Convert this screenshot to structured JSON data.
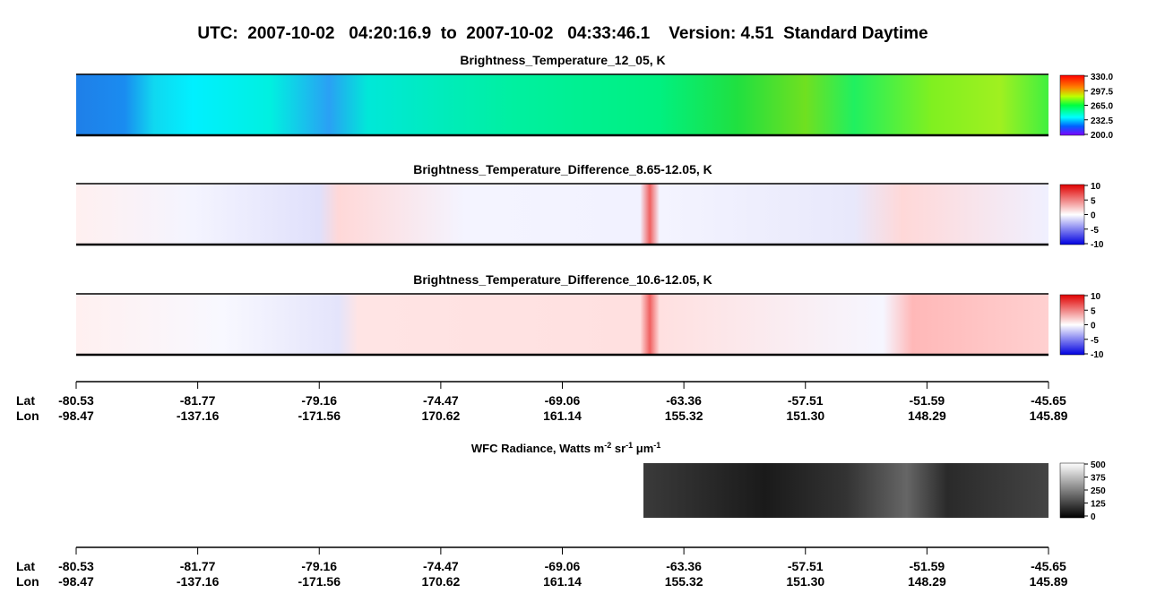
{
  "title": "UTC:  2007-10-02   04:20:16.9  to  2007-10-02   04:33:46.1    Version: 4.51  Standard Daytime",
  "panels": [
    {
      "title": "Brightness_Temperature_12_05, K",
      "colorbar": [
        "330.0",
        "297.5",
        "265.0",
        "232.5",
        "200.0"
      ]
    },
    {
      "title": "Brightness_Temperature_Difference_8.65-12.05, K",
      "colorbar": [
        "10",
        "5",
        "0",
        "-5",
        "-10"
      ]
    },
    {
      "title": "Brightness_Temperature_Difference_10.6-12.05, K",
      "colorbar": [
        "10",
        "5",
        "0",
        "-5",
        "-10"
      ]
    }
  ],
  "wfc": {
    "title": [
      "WFC Radiance, Watts m",
      "-2",
      " sr",
      "-1",
      " μm",
      "-1"
    ],
    "colorbar": [
      "500",
      "375",
      "250",
      "125",
      "0"
    ]
  },
  "axes": [
    {
      "lat_label": "Lat",
      "lon_label": "Lon",
      "lat": [
        "-80.53",
        "-81.77",
        "-79.16",
        "-74.47",
        "-69.06",
        "-63.36",
        "-57.51",
        "-51.59",
        "-45.65"
      ],
      "lon": [
        "-98.47",
        "-137.16",
        "-171.56",
        "170.62",
        "161.14",
        "155.32",
        "151.30",
        "148.29",
        "145.89"
      ]
    },
    {
      "lat_label": "Lat",
      "lon_label": "Lon",
      "lat": [
        "-80.53",
        "-81.77",
        "-79.16",
        "-74.47",
        "-69.06",
        "-63.36",
        "-57.51",
        "-51.59",
        "-45.65"
      ],
      "lon": [
        "-98.47",
        "-137.16",
        "-171.56",
        "170.62",
        "161.14",
        "155.32",
        "151.30",
        "148.29",
        "145.89"
      ]
    }
  ]
}
